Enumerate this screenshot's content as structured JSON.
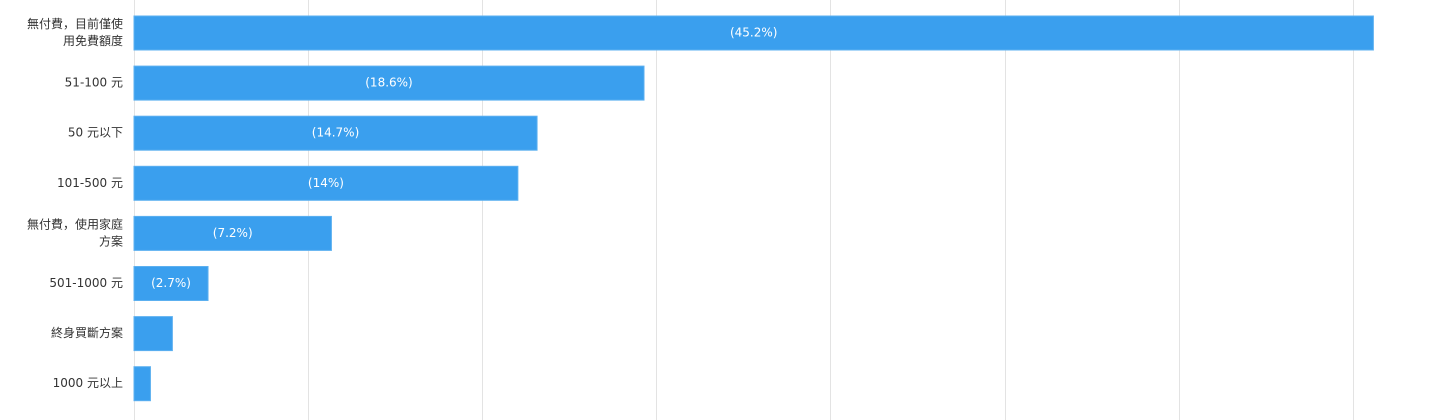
{
  "chart_data": {
    "type": "bar",
    "orientation": "horizontal",
    "categories": [
      [
        "無付費，目前僅使",
        "用免費額度"
      ],
      [
        "51-100 元"
      ],
      [
        "50 元以下"
      ],
      [
        "101-500 元"
      ],
      [
        "無付費，使用家庭",
        "方案"
      ],
      [
        "501-1000 元"
      ],
      [
        "終身買斷方案"
      ],
      [
        "1000 元以上"
      ]
    ],
    "values": [
      45.2,
      18.6,
      14.7,
      14,
      7.2,
      2.7,
      1.4,
      0.6
    ],
    "data_labels": [
      "(45.2%)",
      "(18.6%)",
      "(14.7%)",
      "(14%)",
      "(7.2%)",
      "(2.7%)",
      "",
      ""
    ],
    "xlim": [
      0,
      46
    ],
    "grid": true,
    "bar_color": "#3a9fee",
    "bar_border_color": "#5cb0f0"
  }
}
